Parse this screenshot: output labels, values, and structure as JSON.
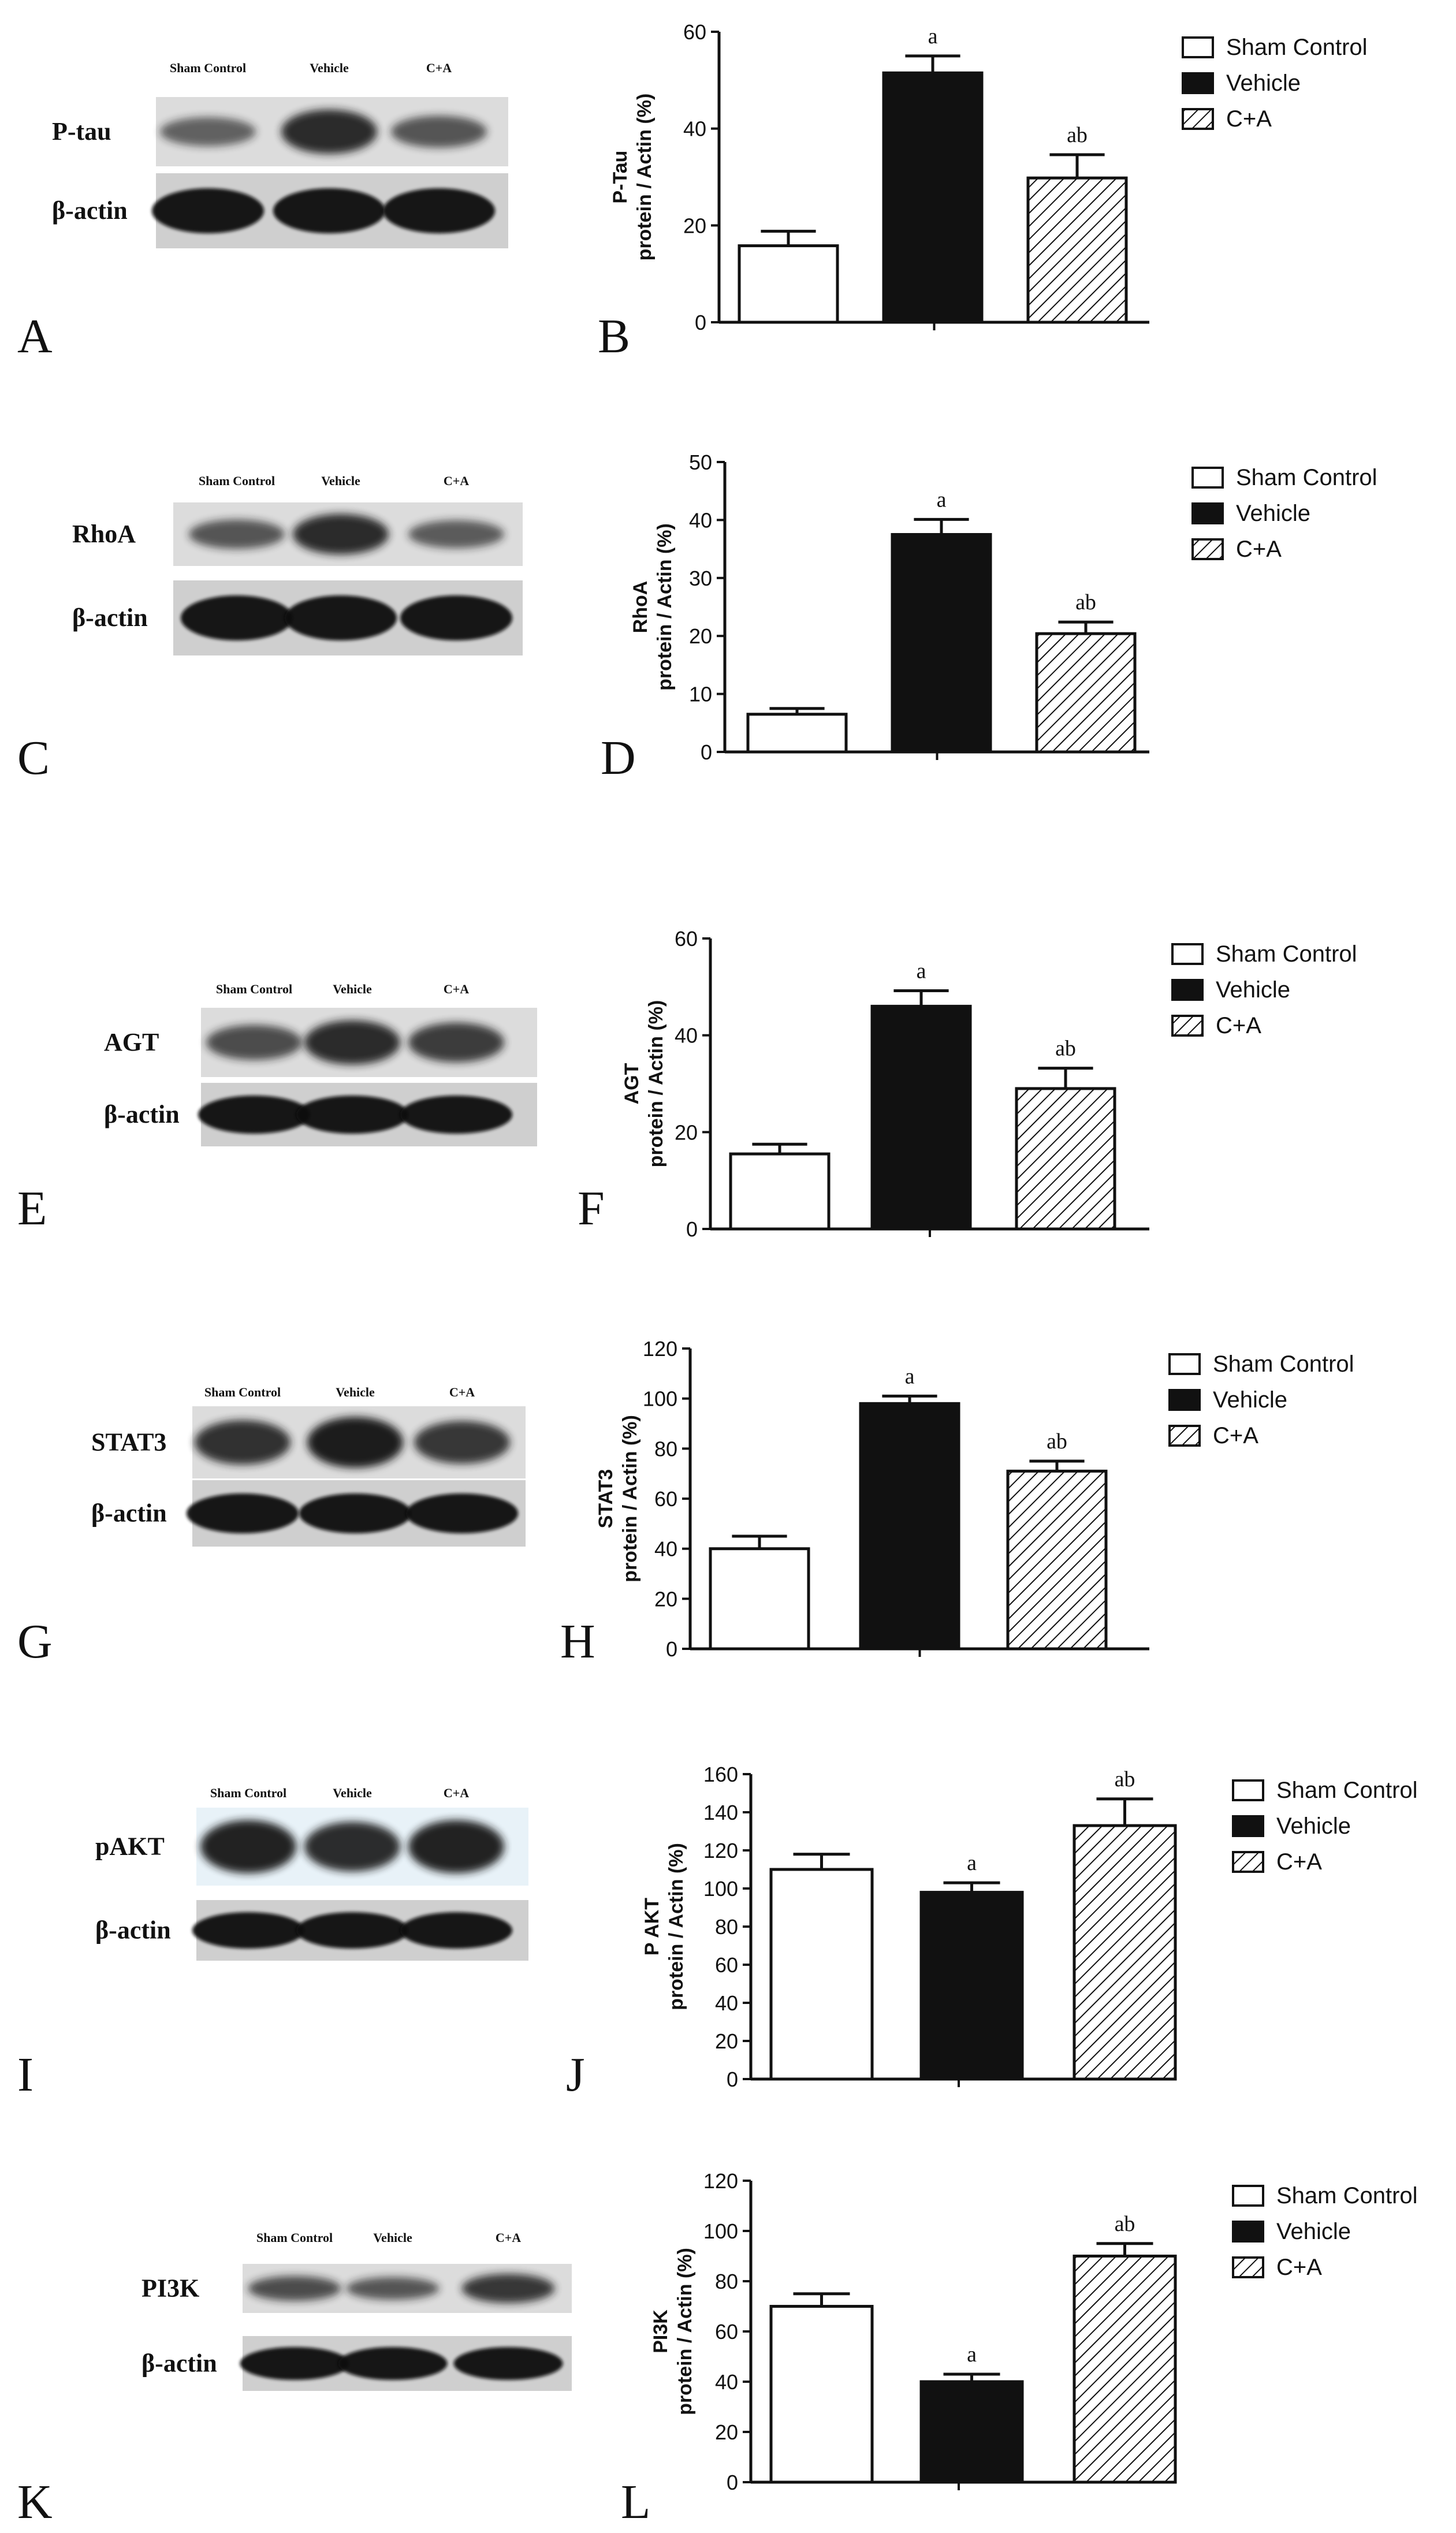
{
  "figure": {
    "panels": [
      {
        "blot": {
          "letter": "A",
          "lanes": [
            "Sham Control",
            "Vehicle",
            "C+A"
          ],
          "target_label": "P-tau",
          "actin_label": "β-actin"
        },
        "chart": {
          "letter": "B",
          "ylabel_line1": "P-Tau",
          "ylabel_line2": "protein / Actin (%)"
        }
      },
      {
        "blot": {
          "letter": "C",
          "lanes": [
            "Sham Control",
            "Vehicle",
            "C+A"
          ],
          "target_label": "RhoA",
          "actin_label": "β-actin"
        },
        "chart": {
          "letter": "D",
          "ylabel_line1": "RhoA",
          "ylabel_line2": "protein / Actin (%)"
        }
      },
      {
        "blot": {
          "letter": "E",
          "lanes": [
            "Sham Control",
            "Vehicle",
            "C+A"
          ],
          "target_label": "AGT",
          "actin_label": "β-actin"
        },
        "chart": {
          "letter": "F",
          "ylabel_line1": "AGT",
          "ylabel_line2": "protein / Actin (%)"
        }
      },
      {
        "blot": {
          "letter": "G",
          "lanes": [
            "Sham Control",
            "Vehicle",
            "C+A"
          ],
          "target_label": "STAT3",
          "actin_label": "β-actin"
        },
        "chart": {
          "letter": "H",
          "ylabel_line1": "STAT3",
          "ylabel_line2": "protein / Actin (%)"
        }
      },
      {
        "blot": {
          "letter": "I",
          "lanes": [
            "Sham Control",
            "Vehicle",
            "C+A"
          ],
          "target_label": "pAKT",
          "actin_label": "β-actin"
        },
        "chart": {
          "letter": "J",
          "ylabel_line1": "P AKT",
          "ylabel_line2": "protein / Actin (%)"
        }
      },
      {
        "blot": {
          "letter": "K",
          "lanes": [
            "Sham Control",
            "Vehicle",
            "C+A"
          ],
          "target_label": "PI3K",
          "actin_label": "β-actin"
        },
        "chart": {
          "letter": "L",
          "ylabel_line1": "PI3K",
          "ylabel_line2": "protein / Actin (%)"
        }
      }
    ]
  },
  "chart_data": [
    {
      "type": "bar",
      "panel": "B",
      "categories": [
        "Sham Control",
        "Vehicle",
        "C+A"
      ],
      "values": [
        15.8,
        51.5,
        29.8
      ],
      "errors": [
        3.0,
        3.5,
        4.8
      ],
      "annotations": [
        "",
        "a",
        "ab"
      ],
      "ylim": [
        0,
        60
      ],
      "yticks": [
        0,
        20,
        40,
        60
      ],
      "ylabel": "P-Tau protein / Actin (%)",
      "legend": [
        "Sham Control",
        "Vehicle",
        "C+A"
      ],
      "legend_position": "top-right"
    },
    {
      "type": "bar",
      "panel": "D",
      "categories": [
        "Sham Control",
        "Vehicle",
        "C+A"
      ],
      "values": [
        6.5,
        37.5,
        20.4
      ],
      "errors": [
        1.0,
        2.6,
        2.0
      ],
      "annotations": [
        "",
        "a",
        "ab"
      ],
      "ylim": [
        0,
        50
      ],
      "yticks": [
        0,
        10,
        20,
        30,
        40,
        50
      ],
      "ylabel": "RhoA protein / Actin (%)",
      "legend": [
        "Sham Control",
        "Vehicle",
        "C+A"
      ],
      "legend_position": "top-right"
    },
    {
      "type": "bar",
      "panel": "F",
      "categories": [
        "Sham Control",
        "Vehicle",
        "C+A"
      ],
      "values": [
        15.5,
        46.0,
        29.0
      ],
      "errors": [
        2.0,
        3.2,
        4.2
      ],
      "annotations": [
        "",
        "a",
        "ab"
      ],
      "ylim": [
        0,
        60
      ],
      "yticks": [
        0,
        20,
        40,
        60
      ],
      "ylabel": "AGT protein / Actin (%)",
      "legend": [
        "Sham Control",
        "Vehicle",
        "C+A"
      ],
      "legend_position": "top-right"
    },
    {
      "type": "bar",
      "panel": "H",
      "categories": [
        "Sham Control",
        "Vehicle",
        "C+A"
      ],
      "values": [
        40,
        98,
        71
      ],
      "errors": [
        5,
        3,
        4
      ],
      "annotations": [
        "",
        "a",
        "ab"
      ],
      "ylim": [
        0,
        120
      ],
      "yticks": [
        0,
        20,
        40,
        60,
        80,
        100,
        120
      ],
      "ylabel": "STAT3 protein / Actin (%)",
      "legend": [
        "Sham Control",
        "Vehicle",
        "C+A"
      ],
      "legend_position": "top-right"
    },
    {
      "type": "bar",
      "panel": "J",
      "categories": [
        "Sham Control",
        "Vehicle",
        "C+A"
      ],
      "values": [
        110,
        98,
        133
      ],
      "errors": [
        8,
        5,
        14
      ],
      "annotations": [
        "",
        "a",
        "ab"
      ],
      "ylim": [
        0,
        160
      ],
      "yticks": [
        0,
        20,
        40,
        60,
        80,
        100,
        120,
        140,
        160
      ],
      "ylabel": "P AKT protein / Actin (%)",
      "legend": [
        "Sham Control",
        "Vehicle",
        "C+A"
      ],
      "legend_position": "top-right"
    },
    {
      "type": "bar",
      "panel": "L",
      "categories": [
        "Sham Control",
        "Vehicle",
        "C+A"
      ],
      "values": [
        70,
        40,
        90
      ],
      "errors": [
        5,
        3,
        5
      ],
      "annotations": [
        "",
        "a",
        "ab"
      ],
      "ylim": [
        0,
        120
      ],
      "yticks": [
        0,
        20,
        40,
        60,
        80,
        100,
        120
      ],
      "ylabel": "PI3K protein / Actin (%)",
      "legend": [
        "Sham Control",
        "Vehicle",
        "C+A"
      ],
      "legend_position": "top-right"
    }
  ]
}
